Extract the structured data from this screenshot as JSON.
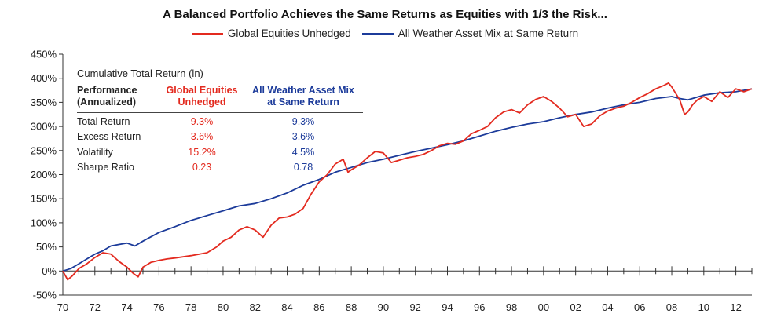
{
  "chart_data": {
    "type": "line",
    "title": "A Balanced Portfolio Achieves the Same Returns as Equities with 1/3 the Risk...",
    "xlabel": "",
    "ylabel": "",
    "x_ticks": [
      "70",
      "72",
      "74",
      "76",
      "78",
      "80",
      "82",
      "84",
      "86",
      "88",
      "90",
      "92",
      "94",
      "96",
      "98",
      "00",
      "02",
      "04",
      "06",
      "08",
      "10",
      "12"
    ],
    "y_ticks": [
      "-50%",
      "0%",
      "50%",
      "100%",
      "150%",
      "200%",
      "250%",
      "300%",
      "350%",
      "400%",
      "450%"
    ],
    "xlim": [
      1970,
      2013
    ],
    "ylim": [
      -50,
      450
    ],
    "grid": false,
    "legend_position": "top-center",
    "series": [
      {
        "name": "Global Equities Unhedged",
        "color": "#e32a1f",
        "points": [
          [
            1970.0,
            0
          ],
          [
            1970.3,
            -18
          ],
          [
            1970.6,
            -10
          ],
          [
            1971.0,
            5
          ],
          [
            1971.5,
            15
          ],
          [
            1972.0,
            28
          ],
          [
            1972.5,
            38
          ],
          [
            1973.0,
            35
          ],
          [
            1973.5,
            20
          ],
          [
            1974.0,
            8
          ],
          [
            1974.4,
            -5
          ],
          [
            1974.7,
            -12
          ],
          [
            1975.0,
            8
          ],
          [
            1975.5,
            18
          ],
          [
            1976.0,
            22
          ],
          [
            1976.5,
            25
          ],
          [
            1977.0,
            27
          ],
          [
            1978.0,
            32
          ],
          [
            1979.0,
            38
          ],
          [
            1979.6,
            50
          ],
          [
            1980.0,
            62
          ],
          [
            1980.5,
            70
          ],
          [
            1981.0,
            85
          ],
          [
            1981.5,
            92
          ],
          [
            1982.0,
            85
          ],
          [
            1982.5,
            70
          ],
          [
            1983.0,
            95
          ],
          [
            1983.5,
            110
          ],
          [
            1984.0,
            112
          ],
          [
            1984.5,
            118
          ],
          [
            1985.0,
            130
          ],
          [
            1985.5,
            160
          ],
          [
            1986.0,
            185
          ],
          [
            1986.5,
            200
          ],
          [
            1987.0,
            222
          ],
          [
            1987.5,
            232
          ],
          [
            1987.8,
            205
          ],
          [
            1988.0,
            210
          ],
          [
            1988.5,
            220
          ],
          [
            1989.0,
            235
          ],
          [
            1989.5,
            248
          ],
          [
            1990.0,
            245
          ],
          [
            1990.5,
            225
          ],
          [
            1991.0,
            230
          ],
          [
            1991.5,
            235
          ],
          [
            1992.0,
            238
          ],
          [
            1992.5,
            242
          ],
          [
            1993.0,
            250
          ],
          [
            1993.5,
            260
          ],
          [
            1994.0,
            265
          ],
          [
            1994.5,
            263
          ],
          [
            1995.0,
            270
          ],
          [
            1995.5,
            285
          ],
          [
            1996.0,
            292
          ],
          [
            1996.5,
            300
          ],
          [
            1997.0,
            318
          ],
          [
            1997.5,
            330
          ],
          [
            1998.0,
            335
          ],
          [
            1998.5,
            328
          ],
          [
            1999.0,
            345
          ],
          [
            1999.5,
            356
          ],
          [
            2000.0,
            362
          ],
          [
            2000.5,
            352
          ],
          [
            2001.0,
            338
          ],
          [
            2001.5,
            320
          ],
          [
            2002.0,
            325
          ],
          [
            2002.5,
            300
          ],
          [
            2003.0,
            305
          ],
          [
            2003.5,
            322
          ],
          [
            2004.0,
            332
          ],
          [
            2004.5,
            338
          ],
          [
            2005.0,
            342
          ],
          [
            2005.5,
            350
          ],
          [
            2006.0,
            360
          ],
          [
            2006.5,
            368
          ],
          [
            2007.0,
            378
          ],
          [
            2007.5,
            385
          ],
          [
            2007.8,
            390
          ],
          [
            2008.0,
            382
          ],
          [
            2008.5,
            355
          ],
          [
            2008.8,
            325
          ],
          [
            2009.0,
            330
          ],
          [
            2009.3,
            345
          ],
          [
            2009.6,
            355
          ],
          [
            2010.0,
            362
          ],
          [
            2010.5,
            352
          ],
          [
            2011.0,
            372
          ],
          [
            2011.5,
            360
          ],
          [
            2012.0,
            378
          ],
          [
            2012.5,
            372
          ],
          [
            2013.0,
            378
          ]
        ]
      },
      {
        "name": "All Weather Asset Mix at Same Return",
        "color": "#1c3b9a",
        "points": [
          [
            1970.0,
            0
          ],
          [
            1970.5,
            5
          ],
          [
            1971.0,
            15
          ],
          [
            1971.5,
            25
          ],
          [
            1972.0,
            35
          ],
          [
            1972.5,
            42
          ],
          [
            1973.0,
            52
          ],
          [
            1973.5,
            55
          ],
          [
            1974.0,
            58
          ],
          [
            1974.5,
            52
          ],
          [
            1975.0,
            62
          ],
          [
            1976.0,
            80
          ],
          [
            1977.0,
            92
          ],
          [
            1978.0,
            105
          ],
          [
            1979.0,
            115
          ],
          [
            1980.0,
            125
          ],
          [
            1981.0,
            135
          ],
          [
            1982.0,
            140
          ],
          [
            1983.0,
            150
          ],
          [
            1984.0,
            162
          ],
          [
            1985.0,
            178
          ],
          [
            1986.0,
            190
          ],
          [
            1987.0,
            205
          ],
          [
            1988.0,
            215
          ],
          [
            1989.0,
            225
          ],
          [
            1990.0,
            232
          ],
          [
            1991.0,
            240
          ],
          [
            1992.0,
            248
          ],
          [
            1993.0,
            255
          ],
          [
            1994.0,
            262
          ],
          [
            1995.0,
            270
          ],
          [
            1996.0,
            280
          ],
          [
            1997.0,
            290
          ],
          [
            1998.0,
            298
          ],
          [
            1999.0,
            305
          ],
          [
            2000.0,
            310
          ],
          [
            2001.0,
            318
          ],
          [
            2002.0,
            325
          ],
          [
            2003.0,
            330
          ],
          [
            2004.0,
            338
          ],
          [
            2005.0,
            345
          ],
          [
            2006.0,
            350
          ],
          [
            2007.0,
            358
          ],
          [
            2008.0,
            362
          ],
          [
            2008.5,
            358
          ],
          [
            2009.0,
            355
          ],
          [
            2009.5,
            360
          ],
          [
            2010.0,
            365
          ],
          [
            2011.0,
            370
          ],
          [
            2012.0,
            372
          ],
          [
            2013.0,
            378
          ]
        ]
      }
    ]
  },
  "inset_table": {
    "caption": "Cumulative Total Return (ln)",
    "header_label": [
      "Performance",
      "(Annualized)"
    ],
    "header_equities": [
      "Global Equities",
      "Unhedged"
    ],
    "header_allweather": [
      "All Weather Asset Mix",
      "at Same Return"
    ],
    "rows": [
      {
        "label": "Total Return",
        "equities": "9.3%",
        "allweather": "9.3%"
      },
      {
        "label": "Excess Return",
        "equities": "3.6%",
        "allweather": "3.6%"
      },
      {
        "label": "Volatility",
        "equities": "15.2%",
        "allweather": "4.5%"
      },
      {
        "label": "Sharpe Ratio",
        "equities": "0.23",
        "allweather": "0.78"
      }
    ]
  }
}
